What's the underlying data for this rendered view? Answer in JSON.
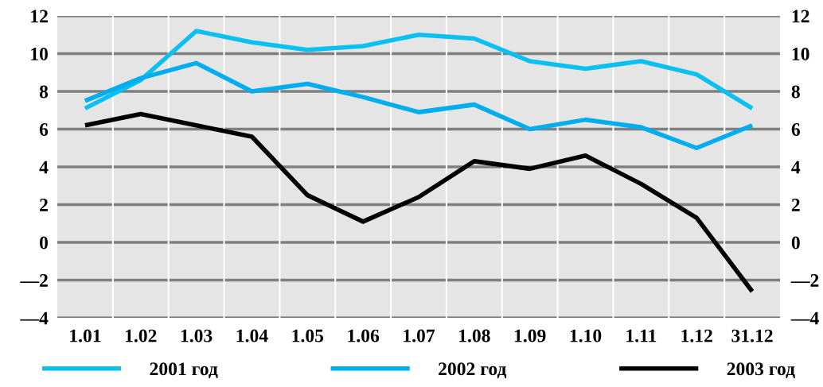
{
  "chart_data": {
    "type": "line",
    "categories": [
      "1.01",
      "1.02",
      "1.03",
      "1.04",
      "1.05",
      "1.06",
      "1.07",
      "1.08",
      "1.09",
      "1.10",
      "1.11",
      "1.12",
      "31.12"
    ],
    "series": [
      {
        "name": "2001 год",
        "color": "#0ac0f0",
        "values": [
          7.1,
          8.6,
          11.2,
          10.6,
          10.2,
          10.4,
          11.0,
          10.8,
          9.6,
          9.2,
          9.6,
          8.9,
          7.1
        ]
      },
      {
        "name": "2002 год",
        "color": "#00aeef",
        "values": [
          7.5,
          8.7,
          9.5,
          8.0,
          8.4,
          7.7,
          6.9,
          7.3,
          6.0,
          6.5,
          6.1,
          5.0,
          6.2
        ]
      },
      {
        "name": "2003 год",
        "color": "#000000",
        "values": [
          6.2,
          6.8,
          6.2,
          5.6,
          2.5,
          1.1,
          2.4,
          4.3,
          3.9,
          4.6,
          3.1,
          1.3,
          -2.6
        ]
      }
    ],
    "ylim": [
      -4,
      12
    ],
    "yticks": [
      {
        "value": -4,
        "label": "—4"
      },
      {
        "value": -2,
        "label": "—2"
      },
      0,
      2,
      4,
      6,
      8,
      10,
      12
    ],
    "y2lim": [
      -4,
      12
    ],
    "y2ticks": [
      {
        "value": -4,
        "label": "—4"
      },
      {
        "value": -2,
        "label": "—2"
      },
      0,
      2,
      4,
      6,
      8,
      10,
      12
    ],
    "grid": true,
    "legend": "bottom",
    "marker": "none",
    "line_style": "solid"
  }
}
